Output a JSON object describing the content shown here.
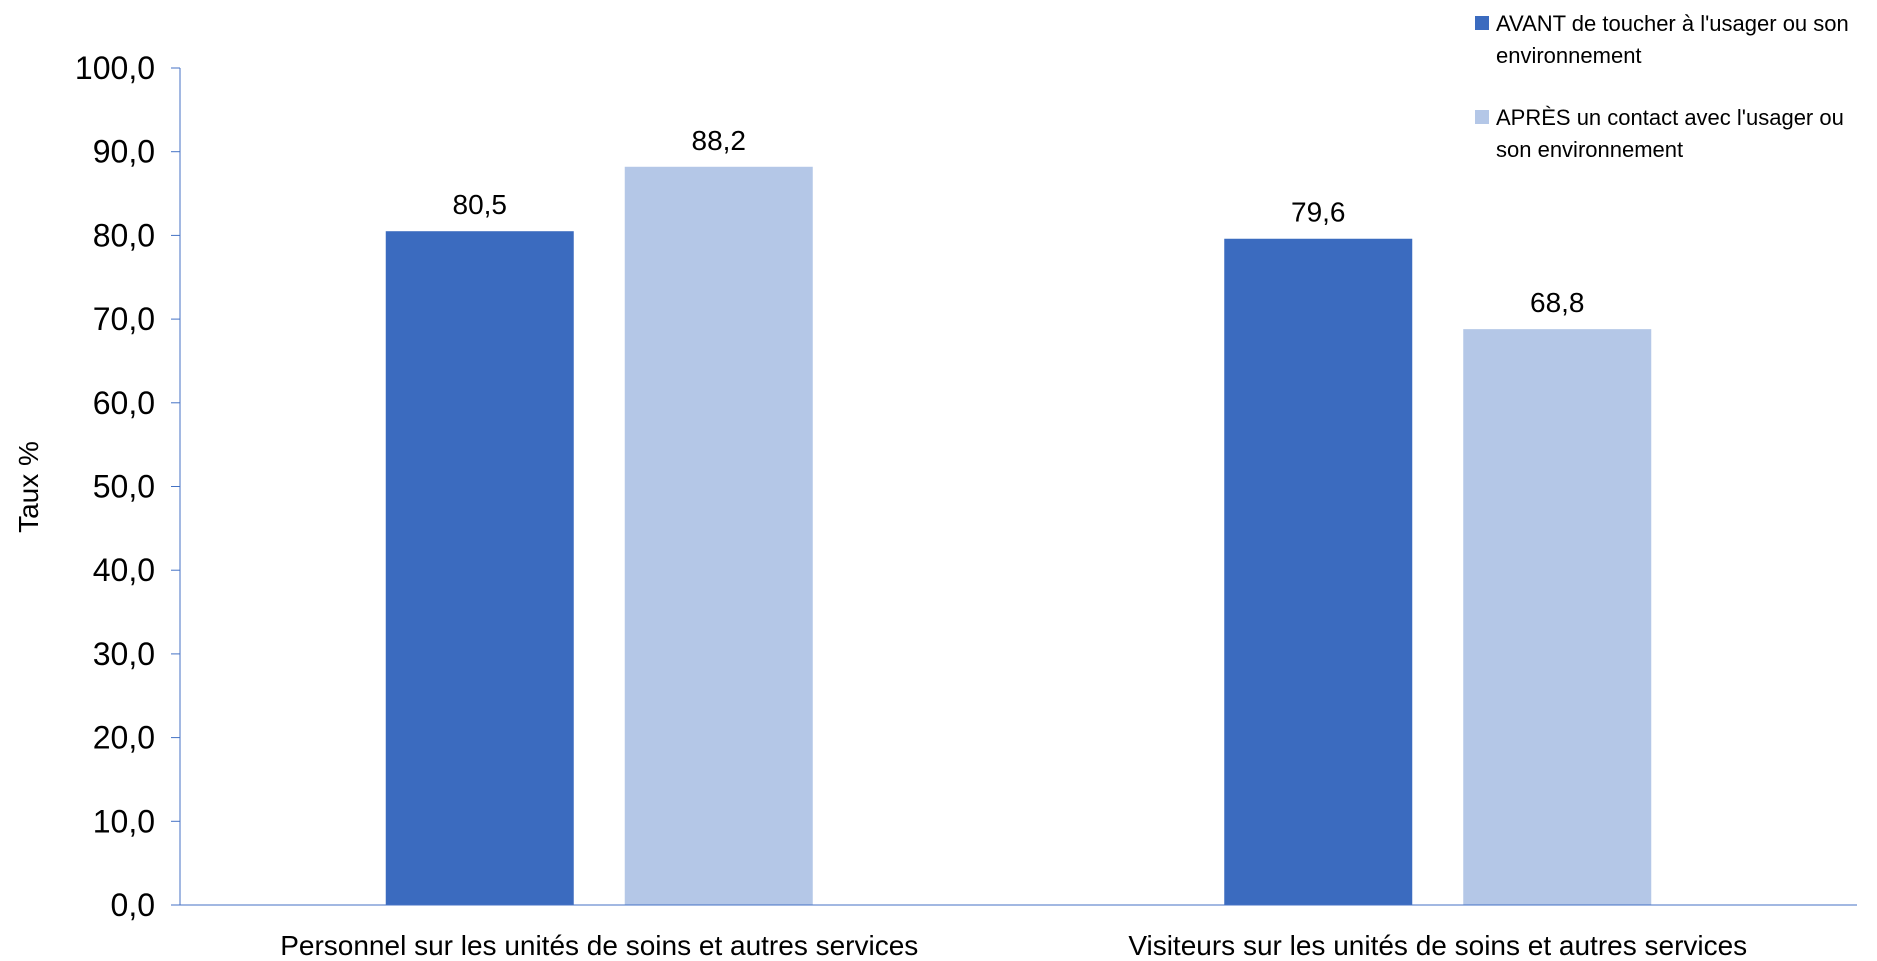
{
  "chart_data": {
    "type": "bar",
    "categories": [
      "Personnel sur les unités de soins et autres services",
      "Visiteurs sur les unités de soins et autres services"
    ],
    "series": [
      {
        "name": "AVANT de toucher à l'usager ou son environnement",
        "color": "#3B6BBF",
        "values": [
          80.5,
          79.6
        ],
        "labels": [
          "80,5",
          "79,6"
        ]
      },
      {
        "name": "APRÈS un contact avec l'usager ou son environnement",
        "color": "#B4C7E7",
        "values": [
          88.2,
          68.8
        ],
        "labels": [
          "88,2",
          "68,8"
        ]
      }
    ],
    "ylabel": "Taux %",
    "ylim": [
      0,
      100
    ],
    "yticks": [
      0,
      10,
      20,
      30,
      40,
      50,
      60,
      70,
      80,
      90,
      100
    ],
    "ytick_labels": [
      "0,0",
      "10,0",
      "20,0",
      "30,0",
      "40,0",
      "50,0",
      "60,0",
      "70,0",
      "80,0",
      "90,0",
      "100,0"
    ],
    "grid": false,
    "legend_position": "top-right",
    "axis_color": "#4472C4"
  }
}
